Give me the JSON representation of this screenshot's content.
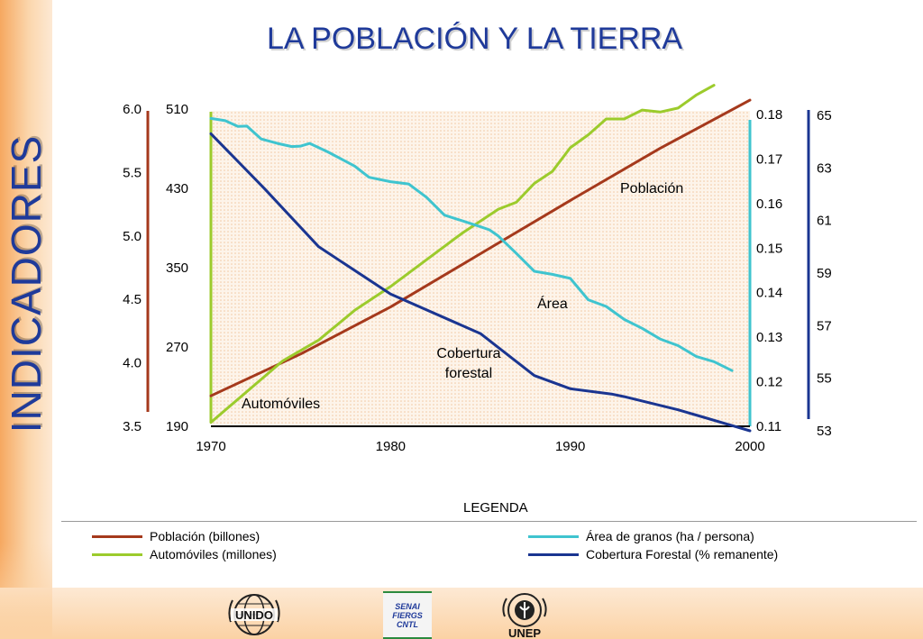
{
  "side_title": "INDICADORES",
  "title": "LA POBLACIÓN Y LA TIERRA",
  "legend": {
    "title": "LEGENDA",
    "items": [
      {
        "label": "Población (billones)",
        "color": "#a5391c"
      },
      {
        "label": "Automóviles (millones)",
        "color": "#9ccb2c"
      },
      {
        "label": "Área de granos (ha / persona)",
        "color": "#3fc4cf"
      },
      {
        "label": "Cobertura Forestal (% remanente)",
        "color": "#1a3591"
      }
    ]
  },
  "logos": {
    "unido": "UNIDO",
    "senai": [
      "SENAI",
      "FIERGS",
      "CNTL"
    ],
    "unep": "UNEP"
  },
  "chart_data": {
    "type": "line",
    "x_ticks": [
      "1970",
      "1980",
      "1990",
      "2000"
    ],
    "xlim": [
      1970,
      2000
    ],
    "axes": {
      "poblacion": {
        "ticks": [
          "6.0",
          "5.5",
          "5.0",
          "4.5",
          "4.0",
          "3.5"
        ],
        "range": [
          3.5,
          6.0
        ]
      },
      "automoviles": {
        "ticks": [
          "510",
          "430",
          "350",
          "270",
          "190"
        ],
        "range": [
          190,
          510
        ]
      },
      "area": {
        "ticks": [
          "0.18",
          "0.17",
          "0.16",
          "0.15",
          "0.14",
          "0.13",
          "0.12",
          "0.11"
        ],
        "range": [
          0.11,
          0.18
        ]
      },
      "cobertura": {
        "ticks": [
          "65",
          "63",
          "61",
          "59",
          "57",
          "55",
          "53"
        ],
        "range": [
          53,
          65
        ]
      }
    },
    "annotations": {
      "poblacion": "Población",
      "area": "Área",
      "cobertura": [
        "Cobertura",
        "forestal"
      ],
      "automoviles": "Automóviles"
    },
    "series": [
      {
        "key": "poblacion",
        "axis": "poblacion",
        "color": "#a5391c",
        "x": [
          1970,
          1975,
          1980,
          1985,
          1990,
          1995,
          2000
        ],
        "y": [
          3.74,
          4.07,
          4.44,
          4.86,
          5.28,
          5.69,
          6.07
        ]
      },
      {
        "key": "automoviles",
        "axis": "automoviles",
        "color": "#9ccb2c",
        "x": [
          1970,
          1972,
          1974,
          1976,
          1978,
          1980,
          1982,
          1984,
          1986,
          1987,
          1988,
          1989,
          1990,
          1991,
          1992,
          1993,
          1994,
          1995,
          1996,
          1997,
          1998
        ],
        "y": [
          194,
          225,
          256,
          277,
          307,
          331,
          358,
          385,
          409,
          416,
          435,
          447,
          471,
          484,
          500,
          500,
          509,
          507,
          511,
          524,
          534
        ]
      },
      {
        "key": "area",
        "axis": "area",
        "color": "#3fc4cf",
        "x": [
          1970,
          1970.8,
          1971.5,
          1972,
          1972.8,
          1973.7,
          1974.5,
          1975,
          1975.5,
          1976.5,
          1978,
          1978.8,
          1980,
          1981,
          1982,
          1983,
          1984,
          1985,
          1985.5,
          1986,
          1987,
          1988,
          1989,
          1990,
          1991,
          1992,
          1993,
          1994,
          1995,
          1996,
          1997,
          1998,
          1999
        ],
        "y": [
          0.1791,
          0.1786,
          0.1773,
          0.1774,
          0.1745,
          0.1735,
          0.1728,
          0.1729,
          0.1735,
          0.1716,
          0.1684,
          0.1659,
          0.1649,
          0.1644,
          0.1614,
          0.1574,
          0.1561,
          0.1548,
          0.1541,
          0.1527,
          0.1488,
          0.1448,
          0.1441,
          0.1432,
          0.1384,
          0.1369,
          0.134,
          0.132,
          0.1296,
          0.1281,
          0.1257,
          0.1245,
          0.1225
        ]
      },
      {
        "key": "cobertura",
        "axis": "cobertura",
        "color": "#1a3591",
        "x": [
          1970,
          1973,
          1976,
          1980,
          1985,
          1988,
          1990,
          1992.3,
          1993,
          1996,
          1997,
          1999,
          2000
        ],
        "y": [
          64.3,
          62.2,
          60.0,
          58.2,
          56.7,
          55.1,
          54.6,
          54.4,
          54.3,
          53.8,
          53.6,
          53.2,
          53.0
        ]
      }
    ]
  }
}
